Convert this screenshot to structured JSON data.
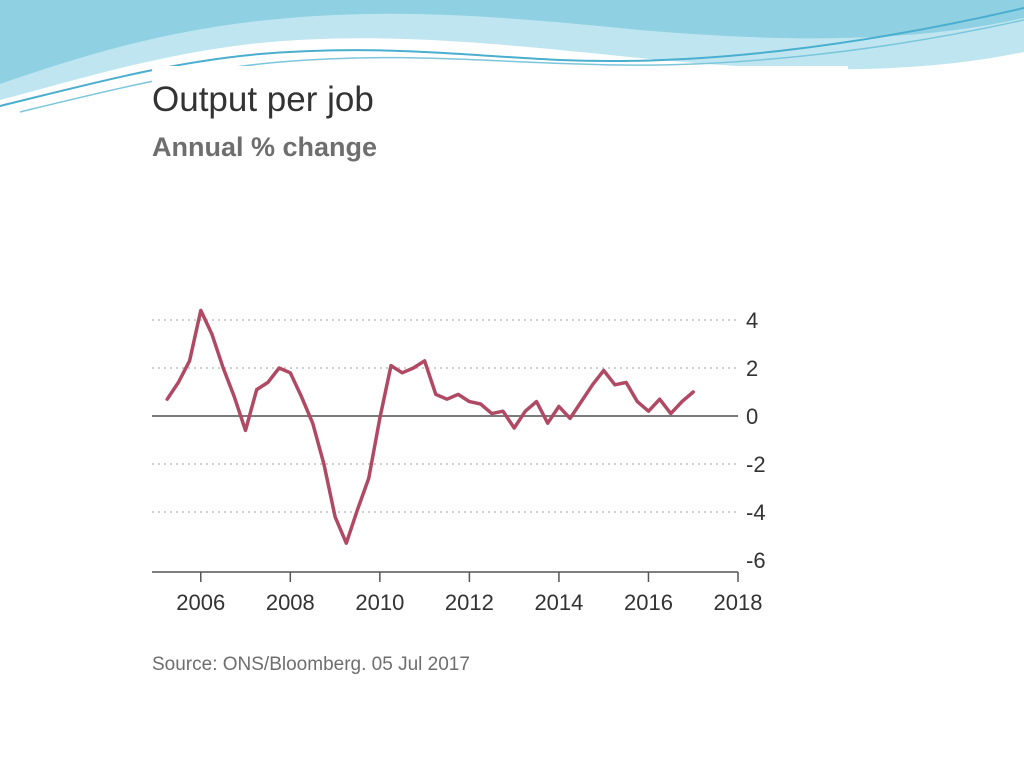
{
  "colors": {
    "line": "#b04a64",
    "grid": "#bfbfbf",
    "zero_line": "#7a7a7a",
    "axis": "#555555",
    "slide_wave_light": "#bfe6f0",
    "slide_wave_dark": "#4aaecf"
  },
  "chart_data": {
    "type": "line",
    "title": "Output per job",
    "subtitle": "Annual % change",
    "source": "Source: ONS/Bloomberg. 05 Jul 2017",
    "xlabel": "",
    "ylabel": "",
    "xlim": [
      2005.0,
      2018.0
    ],
    "ylim": [
      -6,
      4
    ],
    "x_ticks": [
      2006,
      2008,
      2010,
      2012,
      2014,
      2016,
      2018
    ],
    "x_tick_labels": [
      "2006",
      "2008",
      "2010",
      "2012",
      "2014",
      "2016",
      "2018"
    ],
    "y_ticks": [
      4,
      2,
      0,
      -2,
      -4,
      -6
    ],
    "y_tick_labels": [
      "4",
      "2",
      "0",
      "-2",
      "-4",
      "-6"
    ],
    "grid": "horizontal-dotted",
    "y_axis_position": "right",
    "legend": "none",
    "series": [
      {
        "x": [
          2005.25,
          2005.5,
          2005.75,
          2006.0,
          2006.25,
          2006.5,
          2006.75,
          2007.0,
          2007.25,
          2007.5,
          2007.75,
          2008.0,
          2008.25,
          2008.5,
          2008.75,
          2009.0,
          2009.25,
          2009.5,
          2009.75,
          2010.0,
          2010.25,
          2010.5,
          2010.75,
          2011.0,
          2011.25,
          2011.5,
          2011.75,
          2012.0,
          2012.25,
          2012.5,
          2012.75,
          2013.0,
          2013.25,
          2013.5,
          2013.75,
          2014.0,
          2014.25,
          2014.5,
          2014.75,
          2015.0,
          2015.25,
          2015.5,
          2015.75,
          2016.0,
          2016.25,
          2016.5,
          2016.75,
          2017.0
        ],
        "y": [
          0.7,
          1.4,
          2.3,
          4.4,
          3.4,
          2.0,
          0.8,
          -0.6,
          1.1,
          1.4,
          2.0,
          1.8,
          0.8,
          -0.3,
          -2.0,
          -4.2,
          -5.3,
          -3.9,
          -2.6,
          -0.1,
          2.1,
          1.8,
          2.0,
          2.3,
          0.9,
          0.7,
          0.9,
          0.6,
          0.5,
          0.1,
          0.2,
          -0.5,
          0.2,
          0.6,
          -0.3,
          0.4,
          -0.1,
          0.6,
          1.3,
          1.9,
          1.3,
          1.4,
          0.6,
          0.2,
          0.7,
          0.1,
          0.6,
          1.0
        ]
      }
    ]
  }
}
